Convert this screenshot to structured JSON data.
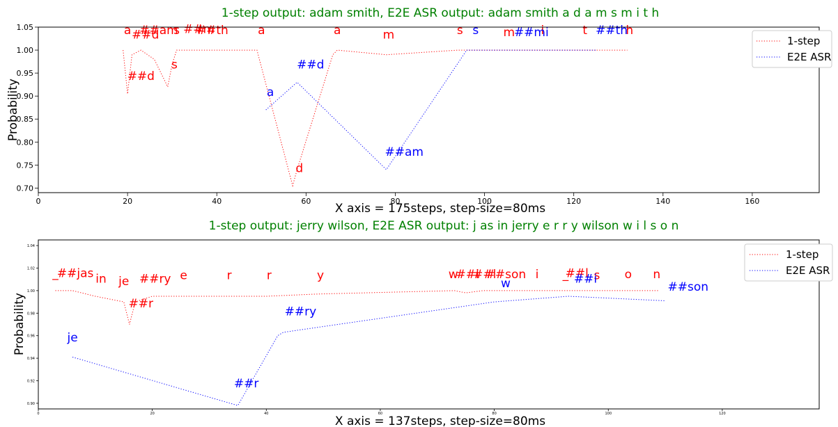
{
  "colors": {
    "step": "#ff0000",
    "e2e": "#0000ff",
    "title": "#008000"
  },
  "chart_data": [
    {
      "type": "line",
      "title": "1-step output: adam smith, E2E ASR output: adam smith a d a m s m i t h",
      "xlabel": "X axis = 175steps, step-size=80ms",
      "ylabel": "Probability",
      "xlim": [
        0,
        175
      ],
      "ylim": [
        0.69,
        1.05
      ],
      "xticks": [
        "0",
        "20",
        "40",
        "60",
        "80",
        "100",
        "120",
        "140",
        "160"
      ],
      "yticks": [
        "0.70",
        "0.75",
        "0.80",
        "0.85",
        "0.90",
        "0.95",
        "1.00",
        "1.05"
      ],
      "legend": {
        "position": "top-right",
        "entries": [
          "1-step",
          "E2E ASR"
        ]
      },
      "series": [
        {
          "name": "1-step",
          "x": [
            19,
            20,
            21,
            23,
            26,
            29,
            30,
            31,
            35,
            37,
            40,
            49,
            57,
            58,
            66,
            67,
            78,
            94,
            97,
            99,
            101,
            106,
            112,
            113,
            122,
            125,
            132
          ],
          "y": [
            1.0,
            0.905,
            0.99,
            1.0,
            0.98,
            0.92,
            0.97,
            1.0,
            1.0,
            1.0,
            1.0,
            1.0,
            0.705,
            0.74,
            0.99,
            1.0,
            0.99,
            1.0,
            1.0,
            1.0,
            1.0,
            1.0,
            1.0,
            1.0,
            1.0,
            1.0,
            1.0
          ]
        },
        {
          "name": "E2E ASR",
          "x": [
            51,
            58,
            78,
            96,
            113,
            125
          ],
          "y": [
            0.87,
            0.93,
            0.74,
            1.0,
            1.0,
            1.0
          ]
        }
      ],
      "annotations": [
        {
          "text": "a",
          "x": 20,
          "y": 1.035,
          "series": "1-step"
        },
        {
          "text": "##d",
          "x": 24,
          "y": 1.025,
          "series": "1-step"
        },
        {
          "text": "##am",
          "x": 27,
          "y": 1.035,
          "series": "1-step"
        },
        {
          "text": "s",
          "x": 31,
          "y": 1.035,
          "series": "1-step"
        },
        {
          "text": "##m",
          "x": 36,
          "y": 1.037,
          "series": "1-step"
        },
        {
          "text": "##th",
          "x": 39,
          "y": 1.035,
          "series": "1-step"
        },
        {
          "text": "##d",
          "x": 23,
          "y": 0.935,
          "series": "1-step"
        },
        {
          "text": "s",
          "x": 30.5,
          "y": 0.96,
          "series": "1-step"
        },
        {
          "text": "a",
          "x": 50,
          "y": 1.035,
          "series": "1-step"
        },
        {
          "text": "d",
          "x": 58.5,
          "y": 0.735,
          "series": "1-step"
        },
        {
          "text": "a",
          "x": 67,
          "y": 1.035,
          "series": "1-step"
        },
        {
          "text": "m",
          "x": 78.5,
          "y": 1.025,
          "series": "1-step"
        },
        {
          "text": "s",
          "x": 94.5,
          "y": 1.035,
          "series": "1-step"
        },
        {
          "text": "m",
          "x": 105.5,
          "y": 1.03,
          "series": "1-step"
        },
        {
          "text": "i",
          "x": 113,
          "y": 1.035,
          "series": "1-step"
        },
        {
          "text": "t",
          "x": 122.5,
          "y": 1.035,
          "series": "1-step"
        },
        {
          "text": "h",
          "x": 132.5,
          "y": 1.035,
          "series": "1-step"
        },
        {
          "text": "a",
          "x": 52,
          "y": 0.9,
          "series": "E2E ASR"
        },
        {
          "text": "##d",
          "x": 61,
          "y": 0.96,
          "series": "E2E ASR"
        },
        {
          "text": "##am",
          "x": 82,
          "y": 0.77,
          "series": "E2E ASR"
        },
        {
          "text": "s",
          "x": 98,
          "y": 1.035,
          "series": "E2E ASR"
        },
        {
          "text": "##mi",
          "x": 110.5,
          "y": 1.03,
          "series": "E2E ASR"
        },
        {
          "text": "##th",
          "x": 128.5,
          "y": 1.035,
          "series": "E2E ASR"
        }
      ]
    },
    {
      "type": "line",
      "title": "1-step output: jerry wilson, E2E ASR output: j as in jerry e r r y wilson w i l s o n",
      "xlabel": "X axis = 137steps, step-size=80ms",
      "ylabel": "Probability",
      "xlim": [
        0,
        137
      ],
      "ylim": [
        0.895,
        1.045
      ],
      "xticks": [
        "0",
        "20",
        "40",
        "60",
        "80",
        "100",
        "120"
      ],
      "yticks": [
        "0.90",
        "0.92",
        "0.94",
        "0.96",
        "0.98",
        "1.00",
        "1.02",
        "1.04"
      ],
      "legend": {
        "position": "top-right",
        "entries": [
          "1-step",
          "E2E ASR"
        ]
      },
      "series": [
        {
          "name": "1-step",
          "x": [
            3,
            6,
            10,
            15,
            16,
            17,
            20,
            25,
            33,
            40,
            49,
            73,
            75,
            78,
            82,
            86,
            93,
            96,
            99,
            104,
            109
          ],
          "y": [
            1.0,
            1.0,
            0.995,
            0.99,
            0.97,
            0.99,
            0.995,
            0.995,
            0.995,
            0.995,
            0.997,
            1.0,
            0.998,
            1.0,
            1.0,
            1.0,
            1.0,
            1.0,
            1.0,
            1.0,
            1.0
          ]
        },
        {
          "name": "E2E ASR",
          "x": [
            6,
            35,
            42,
            43,
            80,
            93,
            110
          ],
          "y": [
            0.941,
            0.898,
            0.96,
            0.963,
            0.99,
            0.995,
            0.991
          ]
        }
      ],
      "annotations": [
        {
          "text": "_",
          "x": 3,
          "y": 1.012,
          "series": "1-step"
        },
        {
          "text": "##jas",
          "x": 6.5,
          "y": 1.012,
          "series": "1-step"
        },
        {
          "text": "in",
          "x": 11,
          "y": 1.007,
          "series": "1-step"
        },
        {
          "text": "je",
          "x": 15,
          "y": 1.005,
          "series": "1-step"
        },
        {
          "text": "##ry",
          "x": 20.5,
          "y": 1.007,
          "series": "1-step"
        },
        {
          "text": "e",
          "x": 25.5,
          "y": 1.01,
          "series": "1-step"
        },
        {
          "text": "##r",
          "x": 18,
          "y": 0.985,
          "series": "1-step"
        },
        {
          "text": "r",
          "x": 33.5,
          "y": 1.01,
          "series": "1-step"
        },
        {
          "text": "r",
          "x": 40.5,
          "y": 1.01,
          "series": "1-step"
        },
        {
          "text": "y",
          "x": 49.5,
          "y": 1.01,
          "series": "1-step"
        },
        {
          "text": "w",
          "x": 72.8,
          "y": 1.011,
          "series": "1-step"
        },
        {
          "text": "##i",
          "x": 75.3,
          "y": 1.011,
          "series": "1-step"
        },
        {
          "text": "##l",
          "x": 78.3,
          "y": 1.011,
          "series": "1-step"
        },
        {
          "text": "##son",
          "x": 82,
          "y": 1.011,
          "series": "1-step"
        },
        {
          "text": "i",
          "x": 87.5,
          "y": 1.011,
          "series": "1-step"
        },
        {
          "text": "_",
          "x": 92.5,
          "y": 1.011,
          "series": "1-step"
        },
        {
          "text": "##l",
          "x": 94.5,
          "y": 1.012,
          "series": "1-step"
        },
        {
          "text": "s",
          "x": 98,
          "y": 1.01,
          "series": "1-step"
        },
        {
          "text": "o",
          "x": 103.5,
          "y": 1.011,
          "series": "1-step"
        },
        {
          "text": "n",
          "x": 108.5,
          "y": 1.011,
          "series": "1-step"
        },
        {
          "text": "je",
          "x": 6,
          "y": 0.955,
          "series": "E2E ASR"
        },
        {
          "text": "##r",
          "x": 36.5,
          "y": 0.914,
          "series": "E2E ASR"
        },
        {
          "text": "##ry",
          "x": 46,
          "y": 0.978,
          "series": "E2E ASR"
        },
        {
          "text": "w",
          "x": 82,
          "y": 1.003,
          "series": "E2E ASR"
        },
        {
          "text": "##i",
          "x": 96,
          "y": 1.007,
          "series": "E2E ASR"
        },
        {
          "text": "##son",
          "x": 114,
          "y": 1.0,
          "series": "E2E ASR"
        }
      ]
    }
  ]
}
